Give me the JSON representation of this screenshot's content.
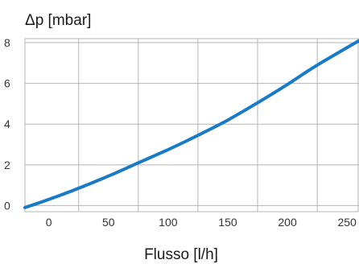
{
  "chart_data": {
    "type": "line",
    "title": "",
    "ylabel": "Δp [mbar]",
    "xlabel": "Flusso [l/h]",
    "xlim": [
      -20,
      260
    ],
    "ylim": [
      -0.3,
      8.2
    ],
    "x_ticks": [
      0,
      50,
      100,
      150,
      200,
      250
    ],
    "x_tick_labels": [
      "0",
      "50",
      "100",
      "150",
      "200",
      "250"
    ],
    "y_ticks": [
      0,
      2,
      4,
      6,
      8
    ],
    "y_tick_labels": [
      "0",
      "2",
      "4",
      "6",
      "8"
    ],
    "grid": true,
    "legend": "none",
    "series": [
      {
        "color": "#1a7ac4",
        "x": [
          -20,
          0,
          25,
          50,
          75,
          100,
          125,
          150,
          175,
          200,
          225,
          260
        ],
        "y": [
          -0.1,
          0.3,
          0.85,
          1.45,
          2.1,
          2.75,
          3.45,
          4.2,
          5.05,
          5.95,
          6.9,
          8.1
        ]
      }
    ],
    "colors": {
      "grid": "#b5b5b5",
      "line": "#1a7ac4"
    }
  }
}
